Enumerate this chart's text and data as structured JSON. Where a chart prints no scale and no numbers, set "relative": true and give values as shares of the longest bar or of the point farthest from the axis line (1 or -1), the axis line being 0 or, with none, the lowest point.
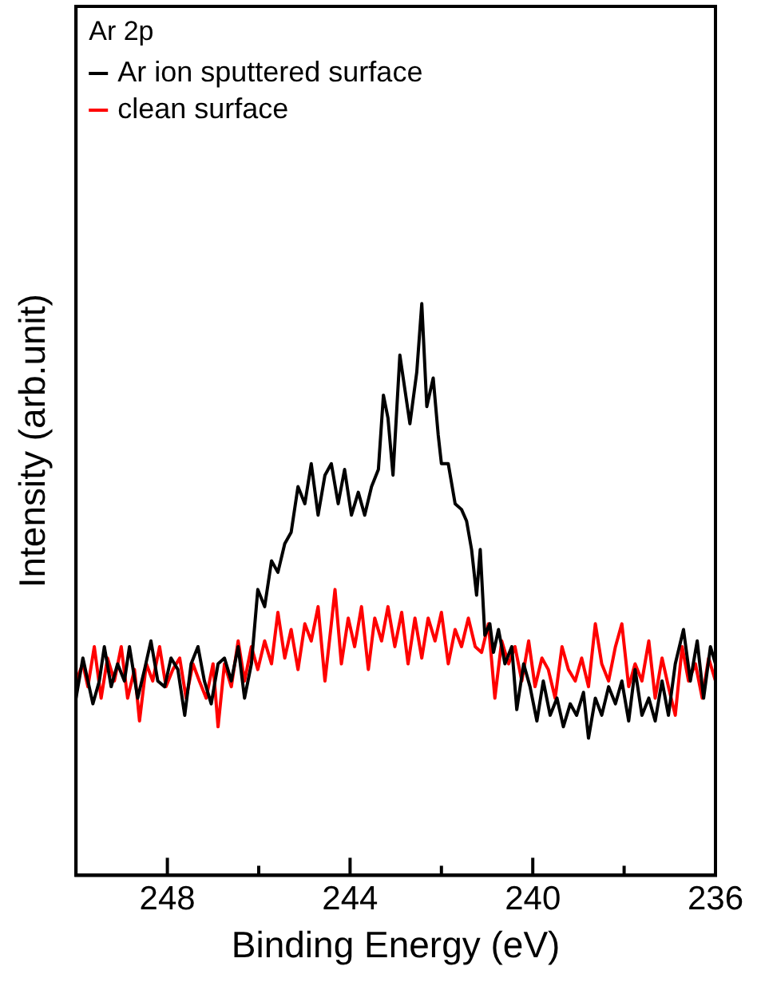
{
  "chart_data": {
    "type": "line",
    "relative": true,
    "xlabel": "Binding Energy (eV)",
    "ylabel": "Intensity (arb.unit)",
    "legend_title": "Ar 2p",
    "legend": "top left",
    "grid": false,
    "marker": "none",
    "line_style": "solid",
    "xlim": [
      250,
      236
    ],
    "xticks": [
      248,
      {
        "value": 246,
        "label": null
      },
      244,
      {
        "value": 242,
        "label": null
      },
      240,
      {
        "value": 238,
        "label": null
      },
      236
    ],
    "series": [
      {
        "name": "Ar ion sputtered surface",
        "color": "#000000",
        "x": [
          250.0,
          249.85,
          249.74,
          249.63,
          249.49,
          249.38,
          249.23,
          249.09,
          248.94,
          248.83,
          248.65,
          248.5,
          248.36,
          248.21,
          248.06,
          247.92,
          247.77,
          247.62,
          247.48,
          247.33,
          247.19,
          247.04,
          246.89,
          246.75,
          246.6,
          246.45,
          246.31,
          246.16,
          246.02,
          245.87,
          245.72,
          245.58,
          245.43,
          245.29,
          245.14,
          244.99,
          244.85,
          244.7,
          244.55,
          244.41,
          244.26,
          244.12,
          243.97,
          243.82,
          243.68,
          243.53,
          243.38,
          243.27,
          243.17,
          243.06,
          242.91,
          242.8,
          242.69,
          242.54,
          242.43,
          242.32,
          242.18,
          242.07,
          242.0,
          241.85,
          241.7,
          241.56,
          241.45,
          241.34,
          241.23,
          241.15,
          241.05,
          240.94,
          240.86,
          240.75,
          240.61,
          240.46,
          240.35,
          240.2,
          240.06,
          239.91,
          239.77,
          239.62,
          239.47,
          239.33,
          239.18,
          239.04,
          238.89,
          238.78,
          238.63,
          238.49,
          238.34,
          238.19,
          238.05,
          237.9,
          237.76,
          237.61,
          237.46,
          237.32,
          237.17,
          237.03,
          236.88,
          236.7,
          236.55,
          236.4,
          236.26,
          236.11,
          236.0
        ],
        "values": [
          0.31,
          0.38,
          0.34,
          0.3,
          0.34,
          0.4,
          0.33,
          0.37,
          0.34,
          0.4,
          0.31,
          0.36,
          0.41,
          0.34,
          0.33,
          0.38,
          0.36,
          0.28,
          0.37,
          0.4,
          0.34,
          0.3,
          0.37,
          0.38,
          0.34,
          0.4,
          0.31,
          0.37,
          0.5,
          0.47,
          0.55,
          0.53,
          0.58,
          0.6,
          0.68,
          0.65,
          0.72,
          0.63,
          0.7,
          0.72,
          0.65,
          0.71,
          0.63,
          0.67,
          0.63,
          0.68,
          0.71,
          0.84,
          0.8,
          0.7,
          0.91,
          0.85,
          0.79,
          0.88,
          1.0,
          0.82,
          0.87,
          0.77,
          0.72,
          0.72,
          0.65,
          0.64,
          0.62,
          0.57,
          0.49,
          0.57,
          0.42,
          0.44,
          0.39,
          0.43,
          0.37,
          0.4,
          0.29,
          0.37,
          0.33,
          0.27,
          0.34,
          0.28,
          0.31,
          0.26,
          0.3,
          0.28,
          0.32,
          0.24,
          0.31,
          0.28,
          0.33,
          0.3,
          0.34,
          0.27,
          0.36,
          0.28,
          0.31,
          0.27,
          0.34,
          0.28,
          0.37,
          0.43,
          0.34,
          0.41,
          0.31,
          0.4,
          0.37
        ]
      },
      {
        "name": "clean surface",
        "color": "#ff0000",
        "x": [
          250.0,
          249.85,
          249.74,
          249.6,
          249.45,
          249.31,
          249.16,
          249.01,
          248.87,
          248.72,
          248.61,
          248.46,
          248.32,
          248.17,
          248.03,
          247.88,
          247.73,
          247.59,
          247.44,
          247.3,
          247.15,
          247.0,
          246.89,
          246.75,
          246.6,
          246.45,
          246.31,
          246.16,
          246.02,
          245.87,
          245.72,
          245.58,
          245.43,
          245.29,
          245.14,
          244.99,
          244.85,
          244.7,
          244.55,
          244.41,
          244.33,
          244.19,
          244.04,
          243.9,
          243.75,
          243.6,
          243.46,
          243.31,
          243.17,
          243.02,
          242.87,
          242.73,
          242.58,
          242.43,
          242.29,
          242.14,
          242.0,
          241.85,
          241.7,
          241.56,
          241.41,
          241.26,
          241.12,
          240.97,
          240.83,
          240.68,
          240.53,
          240.39,
          240.24,
          240.09,
          239.95,
          239.8,
          239.66,
          239.51,
          239.36,
          239.22,
          239.07,
          238.93,
          238.78,
          238.63,
          238.49,
          238.34,
          238.19,
          238.05,
          237.9,
          237.76,
          237.61,
          237.46,
          237.32,
          237.17,
          237.03,
          236.88,
          236.73,
          236.59,
          236.44,
          236.29,
          236.15,
          236.0
        ],
        "values": [
          0.34,
          0.37,
          0.33,
          0.4,
          0.31,
          0.38,
          0.34,
          0.4,
          0.31,
          0.36,
          0.27,
          0.37,
          0.34,
          0.4,
          0.33,
          0.36,
          0.38,
          0.31,
          0.37,
          0.34,
          0.31,
          0.37,
          0.26,
          0.37,
          0.33,
          0.41,
          0.34,
          0.4,
          0.36,
          0.41,
          0.37,
          0.46,
          0.38,
          0.43,
          0.36,
          0.44,
          0.41,
          0.47,
          0.34,
          0.44,
          0.5,
          0.37,
          0.45,
          0.4,
          0.47,
          0.36,
          0.45,
          0.41,
          0.47,
          0.4,
          0.46,
          0.37,
          0.45,
          0.38,
          0.45,
          0.41,
          0.46,
          0.37,
          0.43,
          0.4,
          0.45,
          0.4,
          0.39,
          0.44,
          0.31,
          0.41,
          0.37,
          0.4,
          0.34,
          0.41,
          0.33,
          0.38,
          0.36,
          0.31,
          0.4,
          0.36,
          0.34,
          0.38,
          0.33,
          0.44,
          0.37,
          0.34,
          0.4,
          0.44,
          0.33,
          0.37,
          0.34,
          0.41,
          0.31,
          0.38,
          0.33,
          0.28,
          0.4,
          0.34,
          0.37,
          0.31,
          0.38,
          0.34
        ]
      }
    ]
  }
}
